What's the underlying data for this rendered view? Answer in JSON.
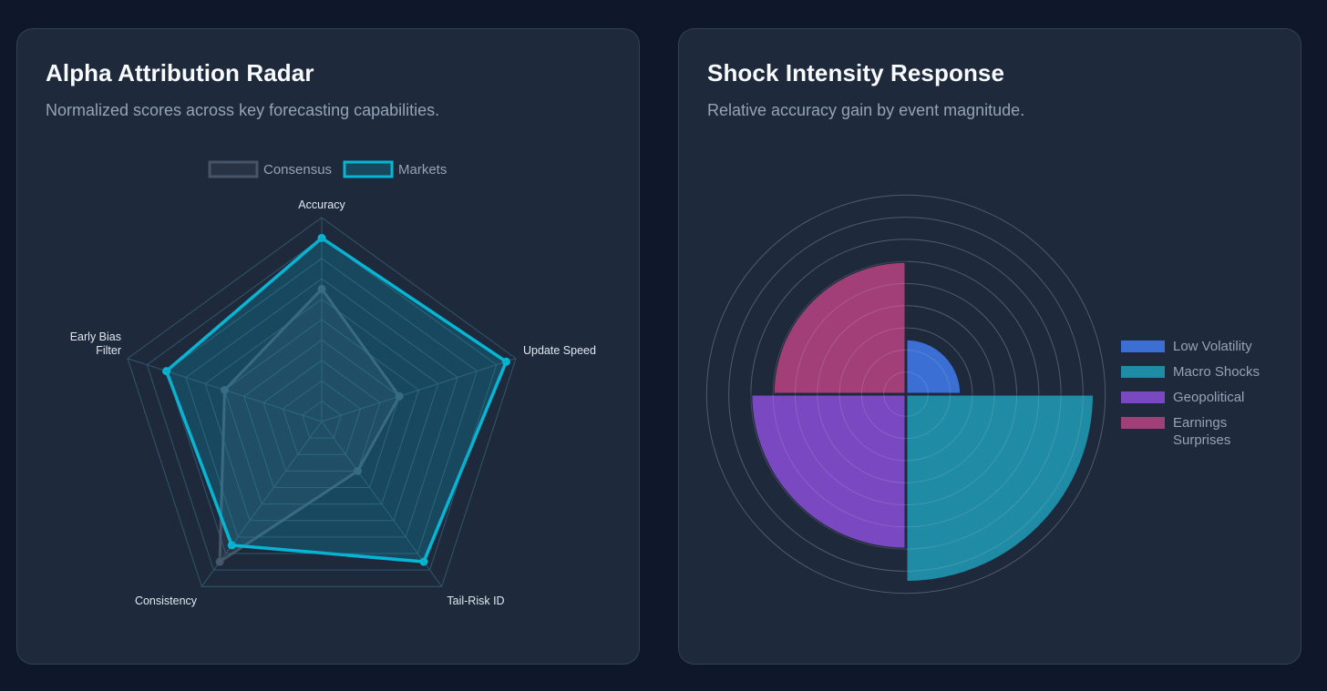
{
  "page": {
    "background": "#0f172a",
    "card_background": "#1e293b"
  },
  "radar_card": {
    "title": "Alpha Attribution Radar",
    "subtitle": "Normalized scores across key forecasting capabilities."
  },
  "polar_card": {
    "title": "Shock Intensity Response",
    "subtitle": "Relative accuracy gain by event magnitude."
  },
  "chart_data": [
    {
      "type": "radar",
      "title": "Alpha Attribution Radar",
      "subtitle": "Normalized scores across key forecasting capabilities.",
      "categories": [
        "Accuracy",
        "Update Speed",
        "Tail-Risk ID",
        "Consistency",
        "Early Bias Filter"
      ],
      "category_lines": [
        [
          "Accuracy"
        ],
        [
          "Update Speed"
        ],
        [
          "Tail-Risk ID"
        ],
        [
          "Consistency"
        ],
        [
          "Early Bias",
          "Filter"
        ]
      ],
      "series": [
        {
          "name": "Consensus",
          "values": [
            65,
            40,
            30,
            85,
            50
          ],
          "color": "#475569",
          "fill": "rgba(71,85,105,0.25)"
        },
        {
          "name": "Markets",
          "values": [
            90,
            95,
            85,
            75,
            80
          ],
          "color": "#06b6d4",
          "fill": "rgba(6,182,212,0.22)"
        }
      ],
      "range": [
        0,
        100
      ],
      "grid_rings": 10,
      "tick_labels_visible": false,
      "legend_position": "top",
      "grid": true
    },
    {
      "type": "polarArea",
      "title": "Shock Intensity Response",
      "subtitle": "Relative accuracy gain by event magnitude.",
      "categories": [
        "Low Volatility",
        "Macro Shocks",
        "Geopolitical",
        "Earnings Surprises"
      ],
      "legend_lines": [
        [
          "Low Volatility"
        ],
        [
          "Macro Shocks"
        ],
        [
          "Geopolitical"
        ],
        [
          "Earnings",
          "Surprises"
        ]
      ],
      "values": [
        2.5,
        8.5,
        7,
        6
      ],
      "colors": [
        "#3b6fd4",
        "#1f8ba4",
        "#7a48c0",
        "#a33f78"
      ],
      "range": [
        0,
        9
      ],
      "grid_rings": 9,
      "tick_labels_visible": false,
      "legend_position": "right",
      "grid": true
    }
  ]
}
